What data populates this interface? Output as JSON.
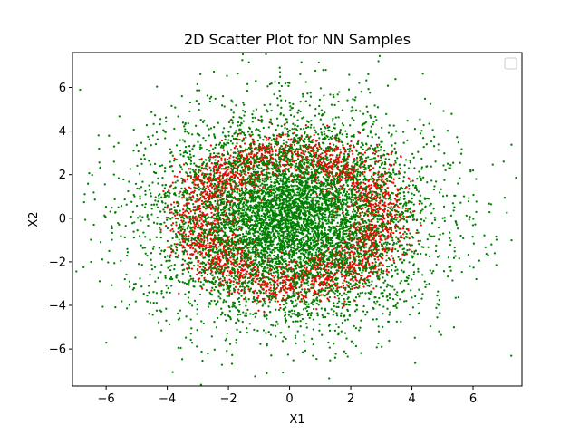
{
  "chart_data": {
    "type": "scatter",
    "title": "2D Scatter Plot for NN Samples",
    "xlabel": "X1",
    "ylabel": "X2",
    "xlim": [
      -7.1,
      7.6
    ],
    "ylim": [
      -7.7,
      7.6
    ],
    "xticks": [
      -6,
      -4,
      -2,
      0,
      2,
      4,
      6
    ],
    "yticks": [
      -6,
      -4,
      -2,
      0,
      2,
      4,
      6
    ],
    "grid": false,
    "legend": {
      "placement": "top-right",
      "entries": []
    },
    "series": [
      {
        "color": "#008000",
        "distribution": "gaussian blob centered near (0,0), spread ~2.3 in x and ~2.4 in y, ~7000 points",
        "x": [
          -6.7,
          -6.4,
          -6.2,
          -5.9,
          -5.6,
          -5.1,
          -4.6,
          -4.1,
          -3.6,
          -3.1,
          -2.6,
          -2.1,
          -1.6,
          -1.1,
          -0.6,
          0.0,
          0.6,
          1.1,
          1.6,
          2.1,
          2.6,
          3.1,
          3.6,
          4.1,
          4.6,
          5.1,
          5.6,
          6.1,
          6.6,
          7.0
        ],
        "y": [
          1.1,
          -0.3,
          2.3,
          -1.5,
          0.5,
          3.1,
          -3.4,
          4.0,
          -4.6,
          2.0,
          5.5,
          -5.6,
          0.1,
          6.3,
          -6.3,
          2.7,
          -2.9,
          6.8,
          -5.0,
          4.5,
          -3.7,
          3.1,
          -1.9,
          4.1,
          -2.4,
          2.2,
          -0.8,
          1.8,
          -1.2,
          2.6
        ]
      },
      {
        "color": "#ff0000",
        "distribution": "ring of points around (0,0) with radius ~3",
        "x": [
          -3.0,
          -2.6,
          -2.1,
          -1.5,
          -0.8,
          0.0,
          0.8,
          1.5,
          2.1,
          2.6,
          3.0,
          3.1,
          3.0,
          2.6,
          2.1,
          1.5,
          0.8,
          0.0,
          -0.8,
          -1.5,
          -2.1,
          -2.6,
          -3.0,
          -3.1
        ],
        "y": [
          0.8,
          1.5,
          2.1,
          2.6,
          3.0,
          3.1,
          3.0,
          2.6,
          2.1,
          1.5,
          0.8,
          0.0,
          -0.8,
          -1.5,
          -2.1,
          -2.6,
          -3.0,
          -3.1,
          -3.0,
          -2.6,
          -2.1,
          -1.5,
          -0.8,
          0.0
        ]
      }
    ]
  }
}
